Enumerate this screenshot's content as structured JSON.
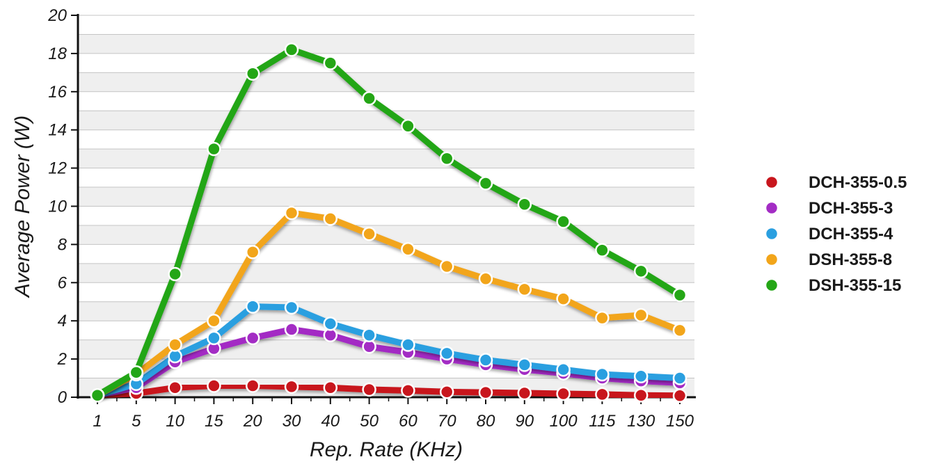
{
  "chart_data": {
    "type": "line",
    "title": "",
    "xlabel": "Rep. Rate (KHz)",
    "ylabel": "Average Power (W)",
    "x": [
      "1",
      "5",
      "10",
      "15",
      "20",
      "30",
      "40",
      "50",
      "60",
      "70",
      "80",
      "90",
      "100",
      "115",
      "130",
      "150"
    ],
    "ylim": [
      0,
      20
    ],
    "yticks": [
      0,
      2,
      4,
      6,
      8,
      10,
      12,
      14,
      16,
      18,
      20
    ],
    "grid": "horizontal, alternating light gray bands",
    "legend_position": "right",
    "series": [
      {
        "name": "DCH-355-0.5",
        "color": "#c8161d",
        "values": [
          0.1,
          0.2,
          0.5,
          0.6,
          0.6,
          0.55,
          0.5,
          0.4,
          0.35,
          0.28,
          0.25,
          0.22,
          0.18,
          0.15,
          0.1,
          0.08
        ]
      },
      {
        "name": "DCH-355-3",
        "color": "#a32cc4",
        "values": [
          0.1,
          0.5,
          1.85,
          2.55,
          3.1,
          3.55,
          3.25,
          2.65,
          2.35,
          2.0,
          1.7,
          1.45,
          1.25,
          1.0,
          0.85,
          0.75
        ]
      },
      {
        "name": "DCH-355-4",
        "color": "#2a9fe0",
        "values": [
          0.1,
          0.7,
          2.15,
          3.1,
          4.75,
          4.7,
          3.85,
          3.25,
          2.75,
          2.3,
          1.95,
          1.7,
          1.45,
          1.2,
          1.1,
          1.0
        ]
      },
      {
        "name": "DSH-355-8",
        "color": "#f2a51a",
        "values": [
          0.1,
          1.2,
          2.75,
          4.0,
          7.6,
          9.65,
          9.35,
          8.55,
          7.75,
          6.85,
          6.2,
          5.65,
          5.15,
          4.15,
          4.3,
          3.5
        ]
      },
      {
        "name": "DSH-355-15",
        "color": "#24a616",
        "values": [
          0.1,
          1.3,
          6.45,
          13.0,
          16.95,
          18.2,
          17.5,
          15.65,
          14.2,
          12.5,
          11.2,
          10.1,
          9.2,
          7.7,
          6.6,
          5.35
        ]
      }
    ]
  }
}
